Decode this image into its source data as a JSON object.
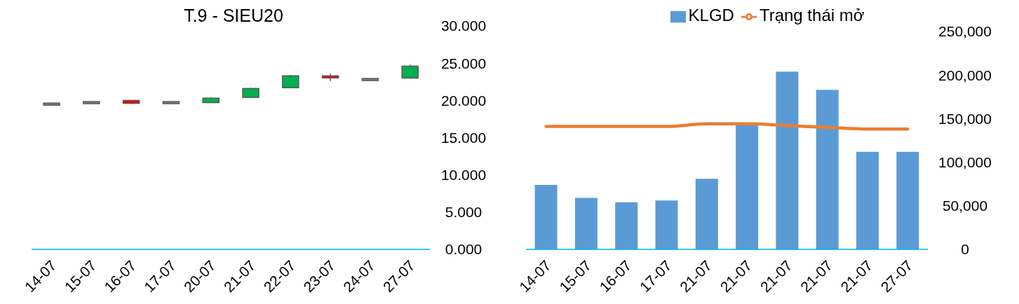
{
  "chart_data": [
    {
      "type": "candlestick",
      "title": "T.9 - SIEU20",
      "categories": [
        "14-07",
        "15-07",
        "16-07",
        "17-07",
        "20-07",
        "21-07",
        "22-07",
        "23-07",
        "24-07",
        "27-07"
      ],
      "ohlc": [
        [
          19.5,
          19.6,
          19.3,
          19.5
        ],
        [
          19.7,
          19.8,
          19.6,
          19.7
        ],
        [
          20.0,
          20.0,
          19.5,
          19.6
        ],
        [
          19.7,
          19.7,
          19.6,
          19.7
        ],
        [
          19.7,
          20.4,
          19.7,
          20.3
        ],
        [
          20.4,
          21.7,
          20.4,
          21.6
        ],
        [
          21.7,
          23.4,
          21.7,
          23.3
        ],
        [
          23.3,
          23.6,
          22.6,
          23.1
        ],
        [
          22.8,
          23.0,
          22.7,
          22.8
        ],
        [
          23.0,
          24.8,
          22.9,
          24.6
        ]
      ],
      "ylim": [
        0,
        30
      ],
      "yticks": [
        {
          "value": 0,
          "label": "0.000"
        },
        {
          "value": 5,
          "label": "5.000"
        },
        {
          "value": 10,
          "label": "10.000"
        },
        {
          "value": 15,
          "label": "15.000"
        },
        {
          "value": 20,
          "label": "20.000"
        },
        {
          "value": 25,
          "label": "25.000"
        },
        {
          "value": 30,
          "label": "30.000"
        }
      ],
      "grid": false,
      "legend": false
    },
    {
      "type": "bar",
      "categories": [
        "14-07",
        "15-07",
        "16-07",
        "17-07",
        "21-07",
        "21-07",
        "21-07",
        "21-07",
        "21-07",
        "27-07"
      ],
      "series": [
        {
          "name": "KLGD",
          "type": "bar",
          "color": "#5b9bd5",
          "values": [
            74000,
            59000,
            54000,
            56000,
            81000,
            143000,
            204000,
            183000,
            112000,
            112000
          ]
        },
        {
          "name": "Trạng thái mở",
          "type": "line",
          "color": "#ed7d31",
          "values": [
            141000,
            141000,
            141000,
            141000,
            144000,
            144000,
            142000,
            140000,
            138000,
            138000
          ]
        }
      ],
      "ylim": [
        0,
        250000
      ],
      "yticks": [
        0,
        {
          "value": 50000,
          "label": "50,000"
        },
        {
          "value": 100000,
          "label": "100,000"
        },
        {
          "value": 150000,
          "label": "150,000"
        },
        {
          "value": 200000,
          "label": "200,000"
        },
        {
          "value": 250000,
          "label": "250,000"
        }
      ],
      "grid": false,
      "legend": "top",
      "marker": "none"
    }
  ]
}
